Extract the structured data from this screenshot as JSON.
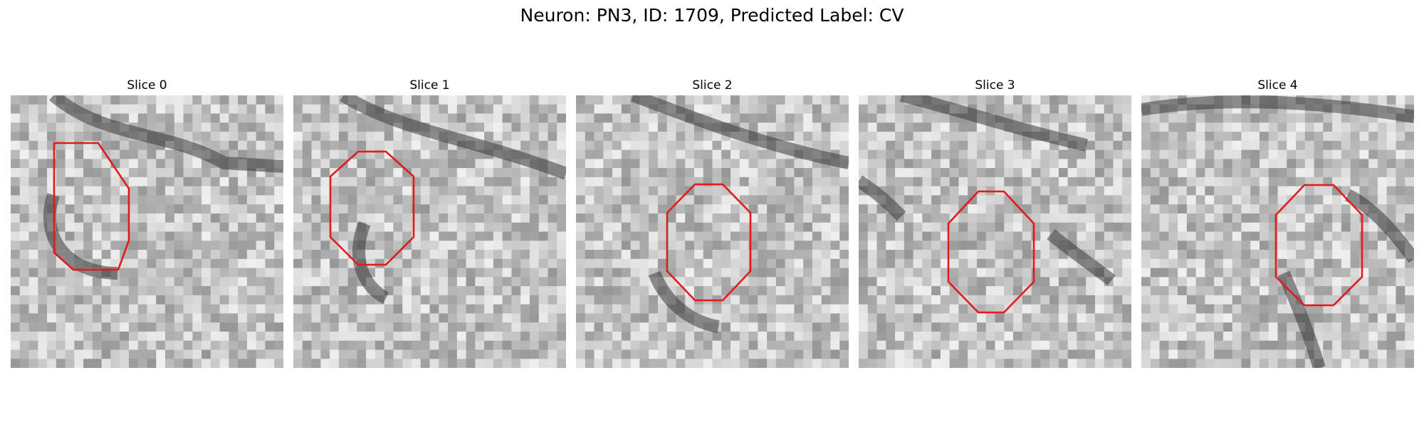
{
  "figure": {
    "title": "Neuron: PN3, ID: 1709, Predicted Label: CV"
  },
  "panels": [
    {
      "title": "Slice 0"
    },
    {
      "title": "Slice 1"
    },
    {
      "title": "Slice 2"
    },
    {
      "title": "Slice 3"
    },
    {
      "title": "Slice 4"
    }
  ],
  "colors": {
    "outline": "#e31a1c",
    "background": "#ffffff"
  }
}
